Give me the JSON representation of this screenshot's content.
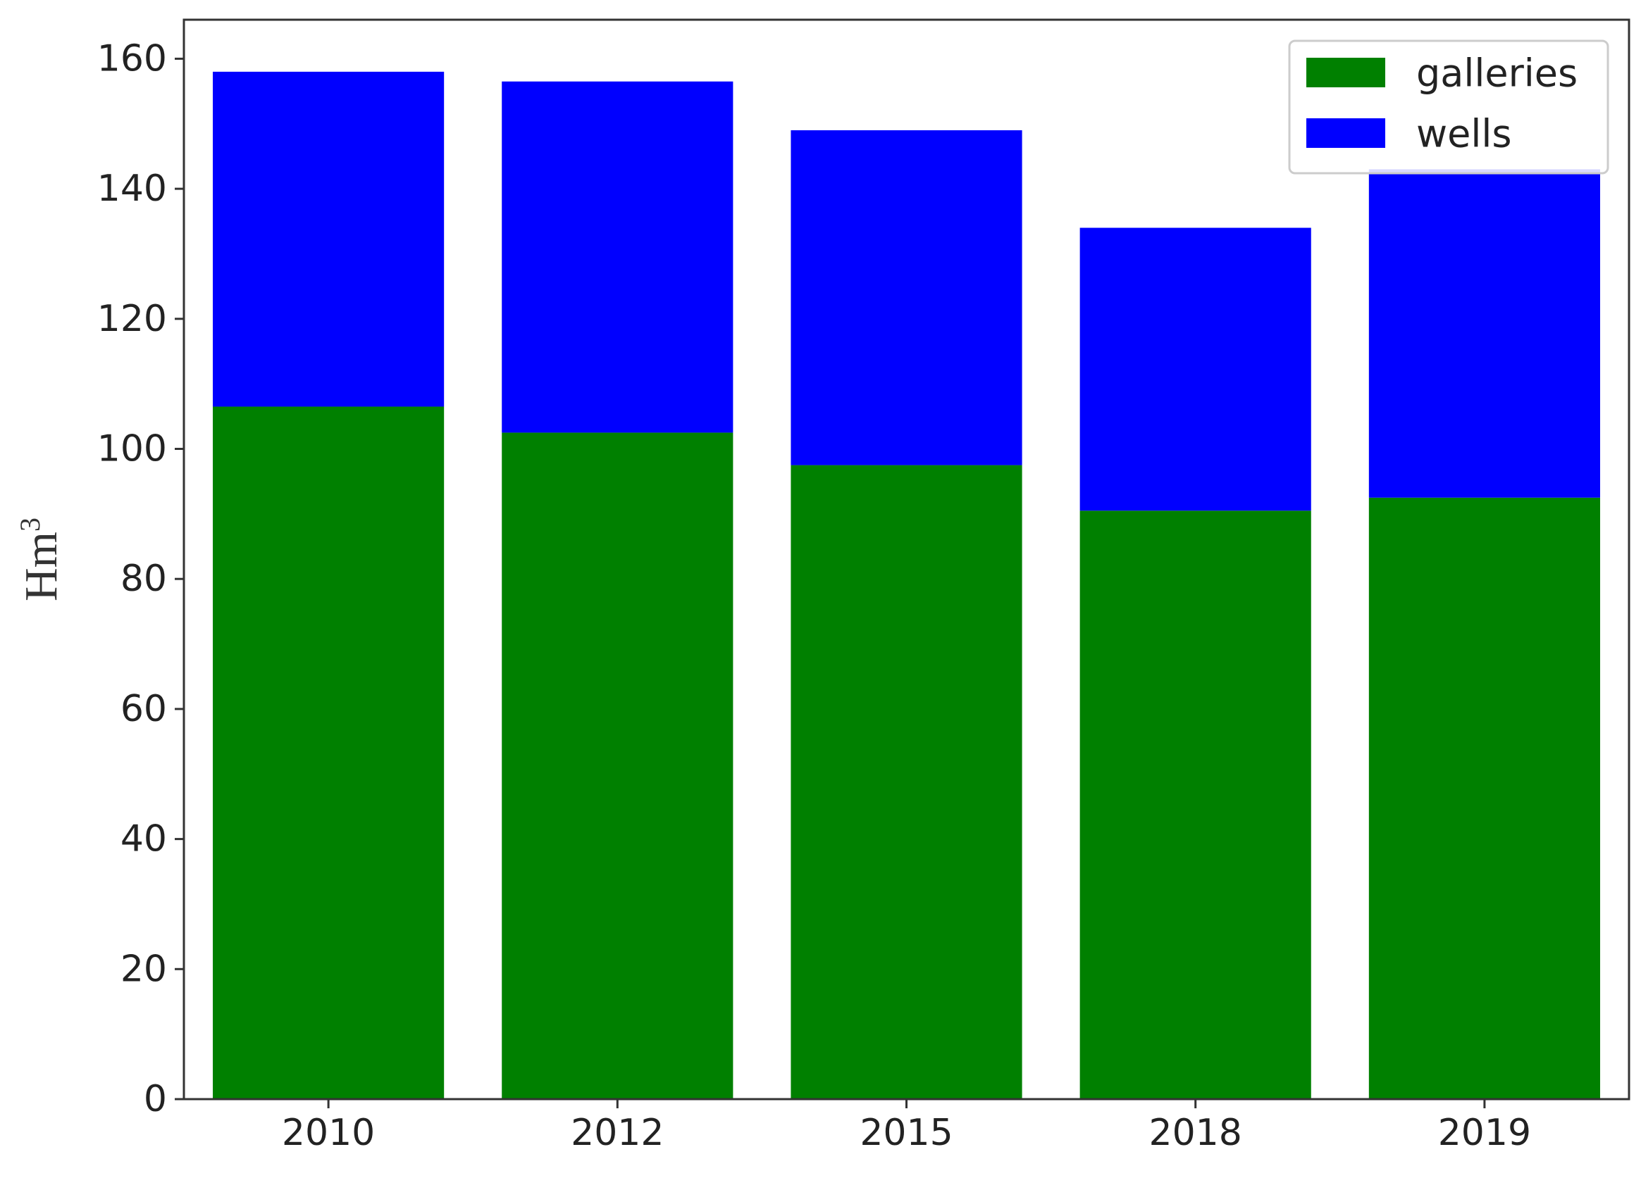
{
  "chart_data": {
    "type": "bar",
    "stacked": true,
    "categories": [
      "2010",
      "2012",
      "2015",
      "2018",
      "2019"
    ],
    "series": [
      {
        "name": "galleries",
        "color": "#008000",
        "values": [
          106.5,
          102.5,
          97.5,
          90.5,
          92.5
        ]
      },
      {
        "name": "wells",
        "color": "#0000ff",
        "values": [
          51.5,
          54,
          51.5,
          43.5,
          50.5
        ]
      }
    ],
    "ylabel": "Hm",
    "ylabel_superscript": "3",
    "yticks": [
      0,
      20,
      40,
      60,
      80,
      100,
      120,
      140,
      160
    ],
    "ylim": [
      0,
      166
    ],
    "grid": false,
    "legend_position": "top-right"
  }
}
